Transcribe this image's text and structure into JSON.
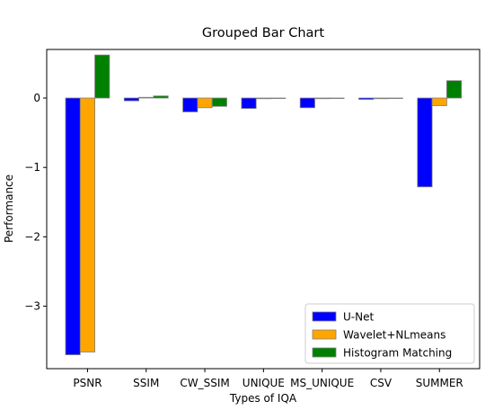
{
  "chart_data": {
    "type": "bar",
    "title": "Grouped Bar Chart",
    "xlabel": "Types of IQA",
    "ylabel": "Performance",
    "categories": [
      "PSNR",
      "SSIM",
      "CW_SSIM",
      "UNIQUE",
      "MS_UNIQUE",
      "CSV",
      "SUMMER"
    ],
    "series": [
      {
        "name": "U-Net",
        "color": "#0000ff",
        "values": [
          -3.7,
          -0.04,
          -0.2,
          -0.15,
          -0.14,
          -0.02,
          -1.28
        ]
      },
      {
        "name": "Wavelet+NLmeans",
        "color": "#ffa500",
        "values": [
          -3.66,
          0.01,
          -0.14,
          -0.01,
          -0.01,
          -0.01,
          -0.11
        ]
      },
      {
        "name": "Histogram Matching",
        "color": "#008000",
        "values": [
          0.62,
          0.03,
          -0.12,
          0.0,
          0.0,
          0.0,
          0.25
        ]
      }
    ],
    "ylim": [
      -3.9,
      0.7
    ],
    "yticks": [
      0,
      -1,
      -2,
      -3
    ],
    "ytick_labels": [
      "0",
      "−1",
      "−2",
      "−3"
    ],
    "legend_placement": "lower-right",
    "grid": false
  }
}
